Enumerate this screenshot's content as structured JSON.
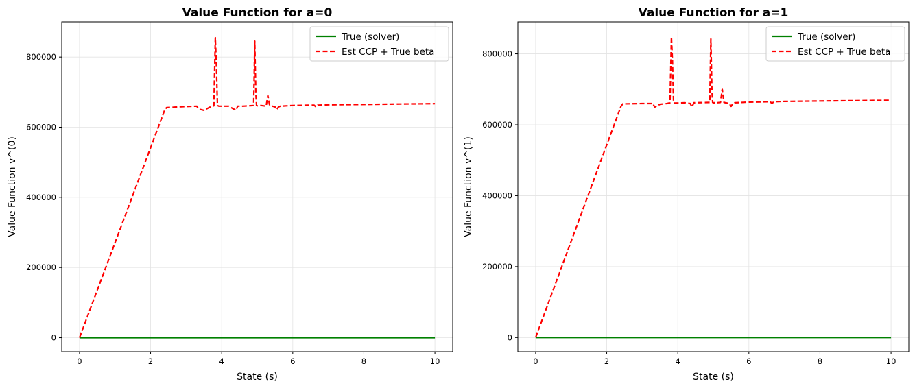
{
  "chart_data": [
    {
      "type": "line",
      "title": "Value Function for a=0",
      "xlabel": "State (s)",
      "ylabel": "Value Function v^(0)",
      "xlim": [
        -0.5,
        10.5
      ],
      "ylim": [
        -40000,
        900000
      ],
      "xticks": [
        0,
        2,
        4,
        6,
        8,
        10
      ],
      "yticks": [
        0,
        200000,
        400000,
        600000,
        800000
      ],
      "grid": true,
      "legend_position": "top-right",
      "series": [
        {
          "name": "True (solver)",
          "color": "#008000",
          "style": "solid",
          "x": [
            0,
            10
          ],
          "y": [
            0,
            0
          ]
        },
        {
          "name": "Est CCP + True beta",
          "color": "#ff0000",
          "style": "dashed",
          "x": [
            0,
            2.4,
            2.45,
            3.0,
            3.3,
            3.35,
            3.5,
            3.7,
            3.78,
            3.82,
            3.85,
            3.88,
            3.92,
            4.2,
            4.4,
            4.45,
            4.6,
            4.9,
            4.93,
            4.96,
            4.98,
            5.0,
            5.1,
            5.25,
            5.3,
            5.35,
            5.5,
            5.55,
            5.6,
            5.65,
            6.0,
            6.6,
            6.65,
            6.7,
            7.0,
            8.0,
            9.0,
            10.0
          ],
          "y": [
            0,
            650000,
            656000,
            659000,
            660000,
            652000,
            648000,
            659000,
            661000,
            855000,
            780000,
            662000,
            660000,
            660000,
            648000,
            660000,
            660000,
            662000,
            845000,
            700000,
            662000,
            661000,
            662000,
            660000,
            690000,
            662000,
            658000,
            650000,
            658000,
            660000,
            662000,
            663000,
            658000,
            663000,
            664000,
            665000,
            666000,
            667000
          ]
        }
      ]
    },
    {
      "type": "line",
      "title": "Value Function for a=1",
      "xlabel": "State (s)",
      "ylabel": "Value Function v^(1)",
      "xlim": [
        -0.5,
        10.5
      ],
      "ylim": [
        -40000,
        890000
      ],
      "xticks": [
        0,
        2,
        4,
        6,
        8,
        10
      ],
      "yticks": [
        0,
        200000,
        400000,
        600000,
        800000
      ],
      "grid": true,
      "legend_position": "top-right",
      "series": [
        {
          "name": "True (solver)",
          "color": "#008000",
          "style": "solid",
          "x": [
            0,
            10
          ],
          "y": [
            0,
            0
          ]
        },
        {
          "name": "Est CCP + True beta",
          "color": "#ff0000",
          "style": "dashed",
          "x": [
            0,
            2.4,
            2.45,
            3.0,
            3.3,
            3.35,
            3.5,
            3.7,
            3.78,
            3.82,
            3.85,
            3.88,
            3.92,
            4.2,
            4.35,
            4.4,
            4.45,
            4.9,
            4.93,
            4.96,
            4.98,
            5.0,
            5.1,
            5.2,
            5.25,
            5.3,
            5.45,
            5.5,
            5.55,
            5.6,
            6.0,
            6.6,
            6.65,
            6.7,
            7.0,
            8.0,
            9.0,
            10.0
          ],
          "y": [
            0,
            652000,
            659000,
            660000,
            660000,
            650000,
            658000,
            660000,
            662000,
            848000,
            780000,
            662000,
            661000,
            662000,
            660000,
            650000,
            662000,
            663000,
            842000,
            700000,
            663000,
            662000,
            662000,
            663000,
            700000,
            663000,
            660000,
            652000,
            660000,
            662000,
            664000,
            665000,
            660000,
            665000,
            666000,
            667000,
            668000,
            669000
          ]
        }
      ]
    }
  ]
}
